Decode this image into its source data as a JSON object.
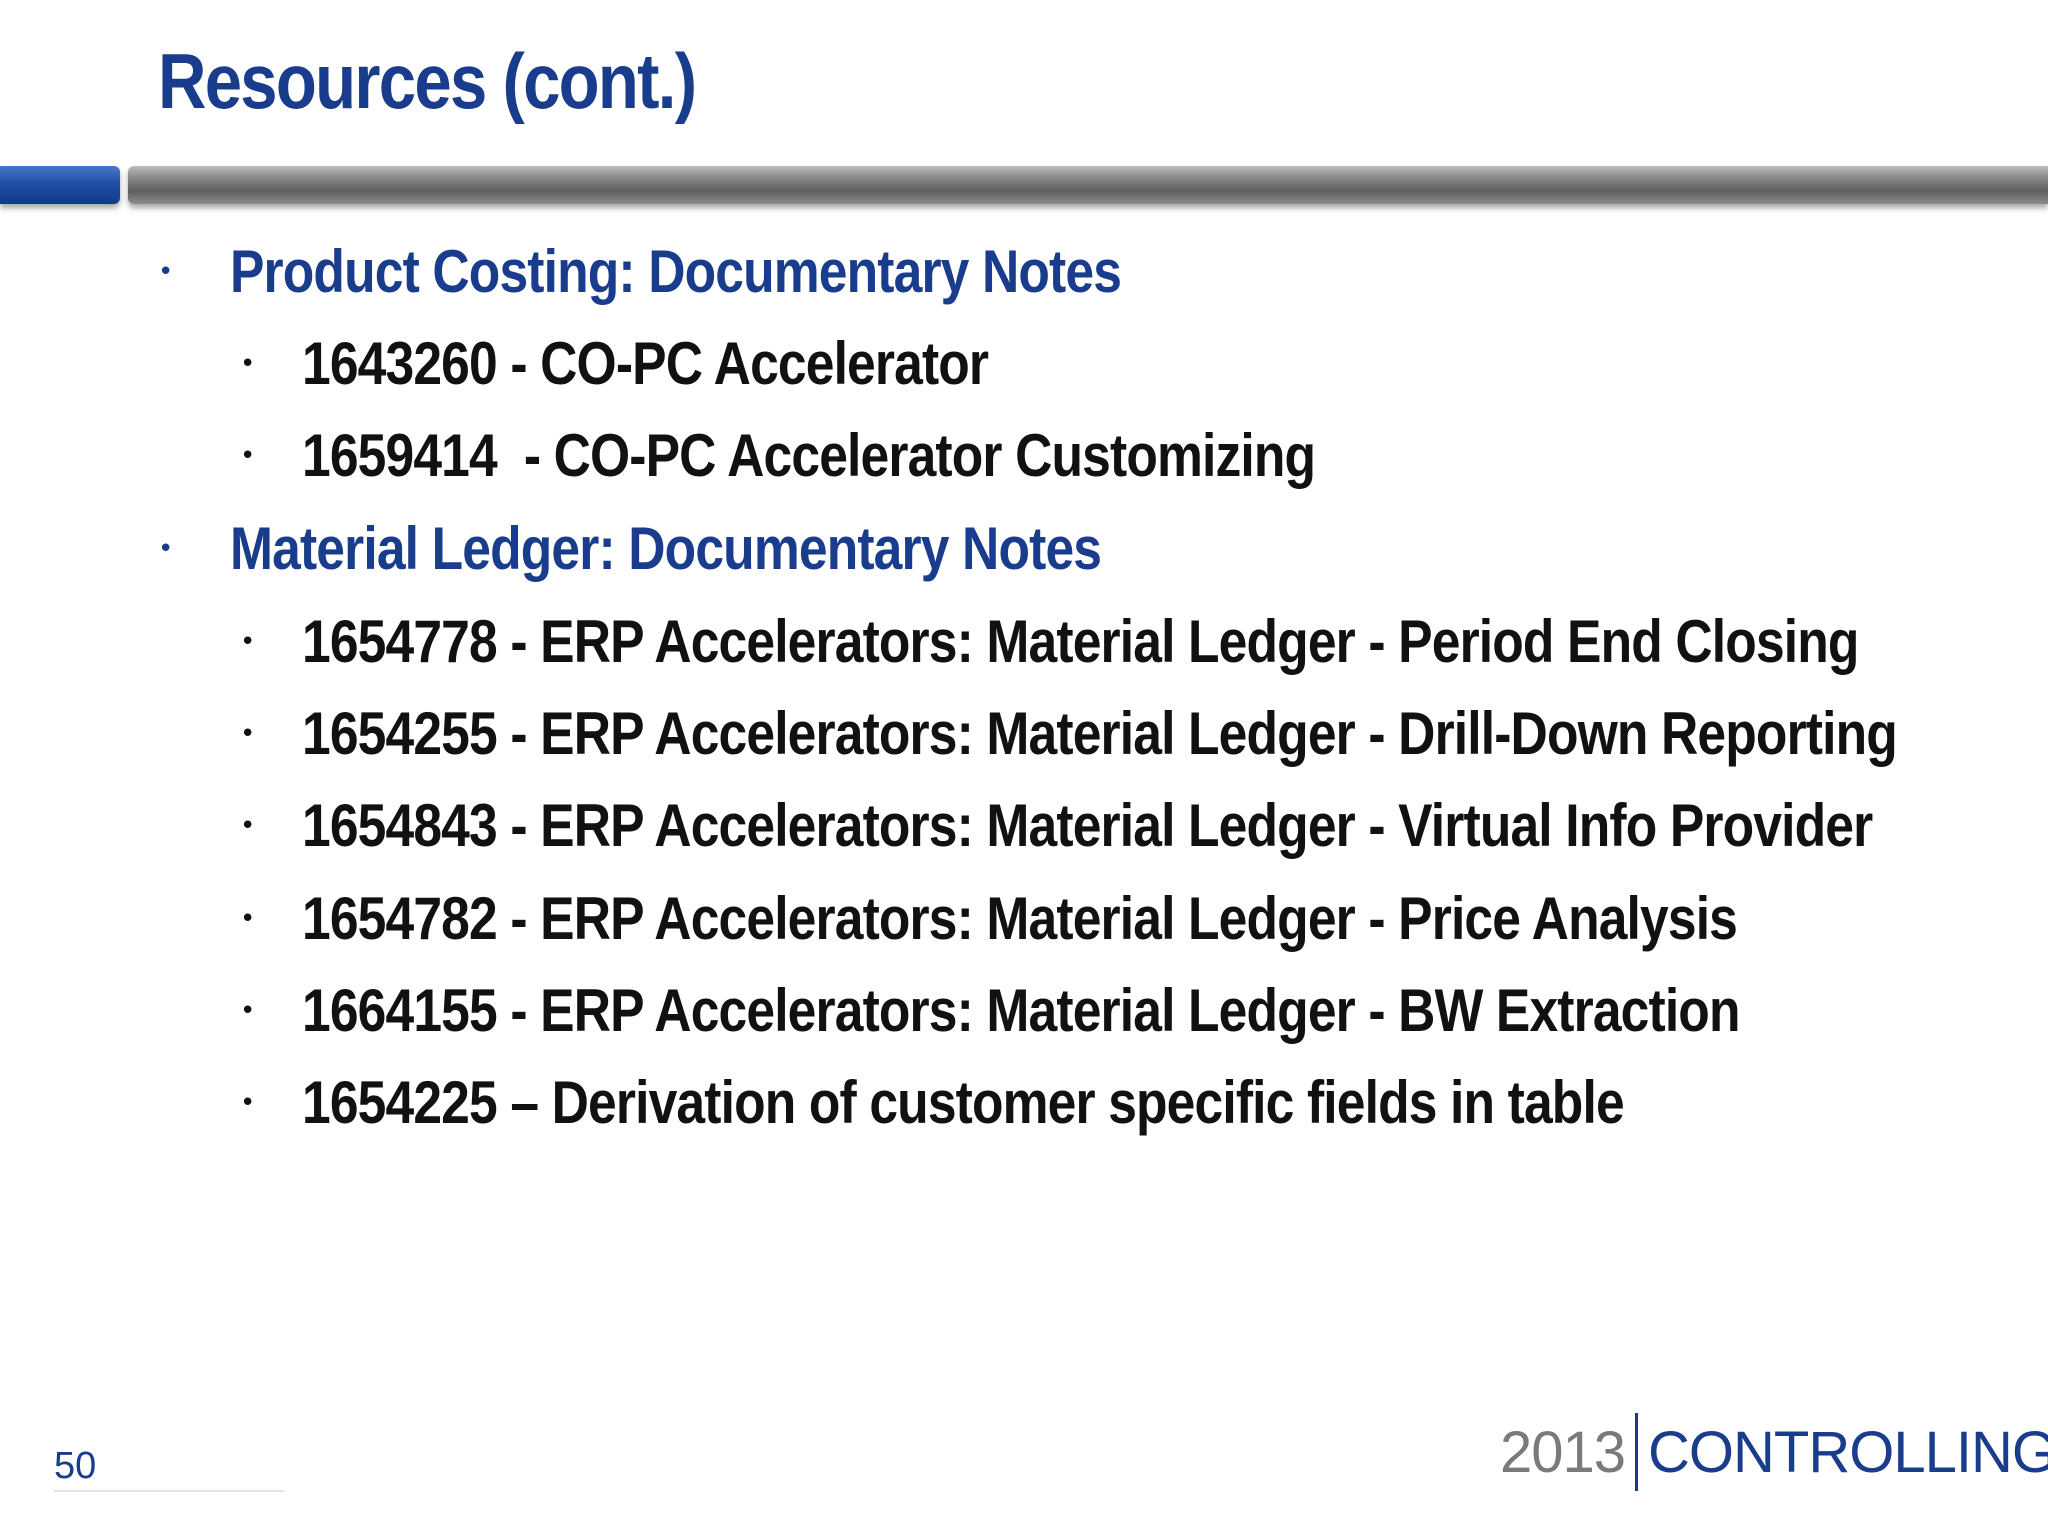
{
  "slide": {
    "title": "Resources (cont.)",
    "page_number": "50"
  },
  "sections": [
    {
      "heading": "Product Costing: Documentary Notes",
      "items": [
        "1643260 - CO-PC Accelerator",
        "1659414  - CO-PC Accelerator Customizing"
      ]
    },
    {
      "heading": "Material Ledger: Documentary Notes",
      "items": [
        "1654778 - ERP Accelerators: Material Ledger - Period End Closing",
        "1654255 - ERP Accelerators: Material Ledger - Drill-Down Reporting",
        "1654843 - ERP Accelerators: Material Ledger - Virtual Info Provider",
        "1654782 - ERP Accelerators: Material Ledger - Price Analysis",
        "1664155 - ERP Accelerators: Material Ledger - BW Extraction",
        "1654225 – Derivation of customer specific fields in table"
      ]
    }
  ],
  "logo": {
    "year": "2013",
    "word": "CONTROLLING"
  },
  "colors": {
    "title_blue": "#1a3c8c",
    "body_text": "#111111",
    "logo_gray": "#7a7a7a"
  }
}
